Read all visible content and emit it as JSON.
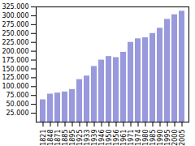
{
  "chart_data": {
    "type": "bar",
    "categories": [
      "1821",
      "1848",
      "1871",
      "1885",
      "1895",
      "1925",
      "1933",
      "1939",
      "1946",
      "1950",
      "1956",
      "1961",
      "1971",
      "1974",
      "1980",
      "1985",
      "1990",
      "1995",
      "2000",
      "2005"
    ],
    "values": [
      63000,
      79000,
      82000,
      85000,
      92000,
      120000,
      130000,
      157000,
      175000,
      185000,
      182000,
      197000,
      225000,
      235000,
      238000,
      250000,
      265000,
      290000,
      303000,
      313000
    ],
    "color": "#9999dd",
    "ylim": [
      0,
      325000
    ],
    "yticks": [
      {
        "value": 25000,
        "label": "25.000"
      },
      {
        "value": 50000,
        "label": "50.000"
      },
      {
        "value": 75000,
        "label": "75.000"
      },
      {
        "value": 100000,
        "label": "100.000"
      },
      {
        "value": 125000,
        "label": "125.000"
      },
      {
        "value": 150000,
        "label": "150.000"
      },
      {
        "value": 175000,
        "label": "175.000"
      },
      {
        "value": 200000,
        "label": "200.000"
      },
      {
        "value": 225000,
        "label": "225.000"
      },
      {
        "value": 250000,
        "label": "250.000"
      },
      {
        "value": 275000,
        "label": "275.000"
      },
      {
        "value": 300000,
        "label": "300.000"
      },
      {
        "value": 325000,
        "label": "325.000"
      }
    ],
    "grid": false
  }
}
